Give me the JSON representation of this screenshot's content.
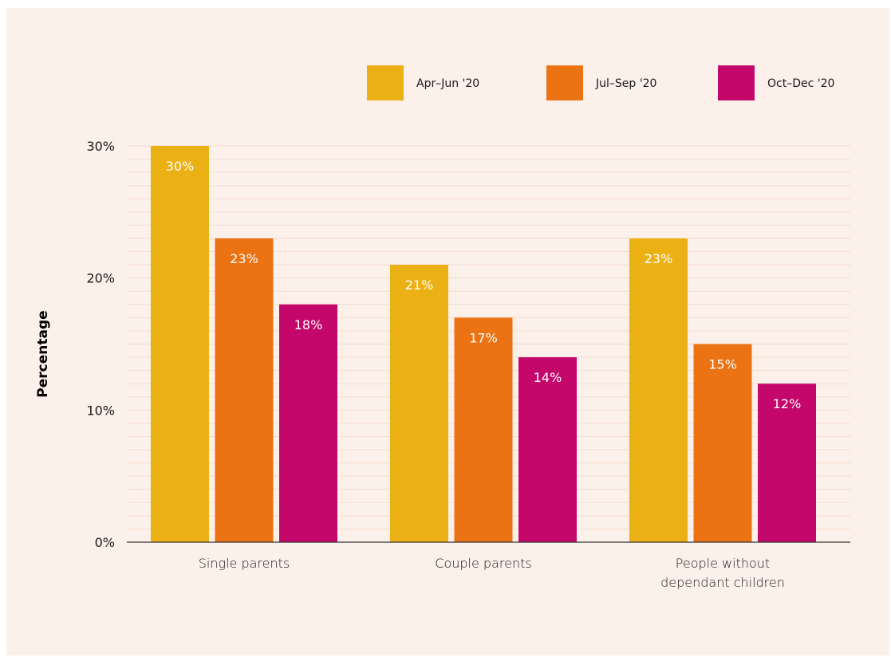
{
  "chart_data": {
    "type": "bar",
    "categories": [
      "Single parents",
      "Couple parents",
      "People without dependant children"
    ],
    "category_lines": [
      [
        "Single parents"
      ],
      [
        "Couple parents"
      ],
      [
        "People without",
        "dependant children"
      ]
    ],
    "series": [
      {
        "name": "Apr–Jun '20",
        "values": [
          30,
          21,
          23
        ],
        "labels": [
          "30%",
          "21%",
          "23%"
        ],
        "color": "#ebb014"
      },
      {
        "name": "Jul–Sep '20",
        "values": [
          23,
          17,
          15
        ],
        "labels": [
          "23%",
          "17%",
          "15%"
        ],
        "color": "#eb7314"
      },
      {
        "name": "Oct–Dec '20",
        "values": [
          18,
          14,
          12
        ],
        "labels": [
          "18%",
          "14%",
          "12%"
        ],
        "color": "#c4086b"
      }
    ],
    "ylabel": "Percentage",
    "ylim": [
      0,
      30
    ],
    "yticks": [
      0,
      10,
      20,
      30
    ],
    "ytick_labels": [
      "0%",
      "10%",
      "20%",
      "30%"
    ],
    "minor_gridlines": true,
    "legend_position": "top-right",
    "colors": {
      "background": "#fbf0ea",
      "gridline": "#f6dccd",
      "axis": "#333333"
    }
  }
}
